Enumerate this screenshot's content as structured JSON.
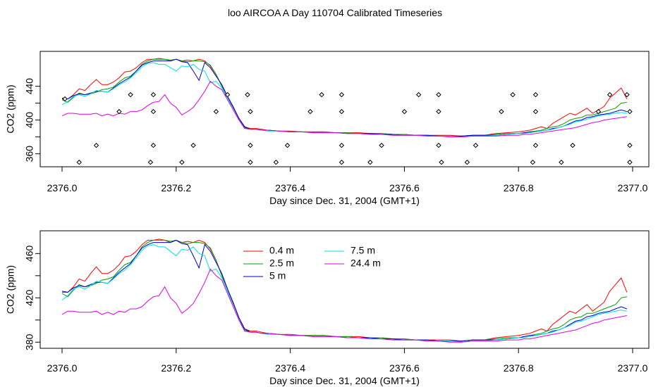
{
  "title": "loo AIRCOA A  Day 110704  Calibrated Timeseries",
  "chart_data": [
    {
      "type": "line",
      "xlabel": "Day since Dec. 31, 2004 (GMT+1)",
      "ylabel": "CO2 (ppm)",
      "xlim": [
        2376.0,
        2377.0
      ],
      "ylim": [
        348,
        478
      ],
      "xticks": [
        "2376.0",
        "2376.2",
        "2376.4",
        "2376.6",
        "2376.8",
        "2377.0"
      ],
      "yticks": [
        "360",
        "400",
        "440"
      ],
      "xtick_values": [
        2376.0,
        2376.2,
        2376.4,
        2376.6,
        2376.8,
        2377.0
      ],
      "ytick_values": [
        360,
        380,
        400,
        420,
        440
      ],
      "ytick_labeled": [
        360,
        400,
        440
      ],
      "x": [
        2376.0,
        2376.01,
        2376.02,
        2376.03,
        2376.04,
        2376.05,
        2376.06,
        2376.07,
        2376.08,
        2376.09,
        2376.1,
        2376.11,
        2376.12,
        2376.13,
        2376.14,
        2376.15,
        2376.16,
        2376.17,
        2376.18,
        2376.19,
        2376.2,
        2376.21,
        2376.22,
        2376.23,
        2376.24,
        2376.25,
        2376.26,
        2376.27,
        2376.28,
        2376.29,
        2376.3,
        2376.31,
        2376.32,
        2376.33,
        2376.34,
        2376.35,
        2376.36,
        2376.38,
        2376.4,
        2376.42,
        2376.44,
        2376.46,
        2376.48,
        2376.5,
        2376.52,
        2376.54,
        2376.56,
        2376.58,
        2376.6,
        2376.62,
        2376.64,
        2376.66,
        2376.68,
        2376.7,
        2376.72,
        2376.74,
        2376.76,
        2376.78,
        2376.8,
        2376.81,
        2376.82,
        2376.83,
        2376.84,
        2376.85,
        2376.86,
        2376.87,
        2376.88,
        2376.89,
        2376.9,
        2376.91,
        2376.92,
        2376.93,
        2376.94,
        2376.95,
        2376.96,
        2376.97,
        2376.98,
        2376.99
      ],
      "series": [
        {
          "name": "0.4 m",
          "color": "#ff0000",
          "values": [
            425,
            425,
            430,
            437,
            435,
            442,
            448,
            442,
            442,
            445,
            450,
            457,
            458,
            462,
            468,
            472,
            472,
            473,
            472,
            470,
            472,
            470,
            471,
            470,
            472,
            470,
            464,
            454,
            440,
            428,
            415,
            402,
            392,
            390,
            390,
            389,
            388,
            387,
            387,
            386,
            386,
            386,
            385,
            385,
            385,
            384,
            384,
            383,
            383,
            382,
            382,
            382,
            382,
            381,
            382,
            382,
            384,
            385,
            386,
            387,
            388,
            390,
            392,
            390,
            396,
            400,
            404,
            408,
            406,
            410,
            414,
            408,
            412,
            416,
            426,
            432,
            438,
            425
          ]
        },
        {
          "name": "2.5 m",
          "color": "#00a000",
          "values": [
            424,
            421,
            427,
            432,
            430,
            431,
            433,
            436,
            437,
            439,
            445,
            450,
            452,
            458,
            466,
            470,
            472,
            472,
            472,
            471,
            472,
            470,
            469,
            470,
            470,
            469,
            465,
            454,
            440,
            428,
            416,
            402,
            391,
            389,
            389,
            388,
            388,
            387,
            386,
            386,
            386,
            386,
            385,
            385,
            384,
            384,
            384,
            383,
            383,
            382,
            382,
            381,
            381,
            381,
            382,
            382,
            383,
            384,
            384,
            385,
            386,
            387,
            388,
            390,
            392,
            393,
            396,
            400,
            402,
            403,
            406,
            406,
            408,
            410,
            412,
            414,
            420,
            421
          ]
        },
        {
          "name": "5 m",
          "color": "#0000cc",
          "values": [
            426,
            425,
            429,
            431,
            430,
            432,
            434,
            434,
            433,
            438,
            443,
            447,
            451,
            458,
            465,
            468,
            470,
            470,
            470,
            470,
            472,
            469,
            468,
            458,
            447,
            468,
            462,
            452,
            442,
            428,
            415,
            402,
            392,
            389,
            389,
            388,
            388,
            387,
            386,
            386,
            385,
            385,
            385,
            384,
            384,
            384,
            383,
            383,
            382,
            382,
            382,
            381,
            381,
            381,
            382,
            382,
            382,
            383,
            384,
            385,
            386,
            386,
            387,
            388,
            390,
            391,
            393,
            396,
            399,
            400,
            403,
            404,
            406,
            407,
            408,
            410,
            412,
            410
          ]
        },
        {
          "name": "7.5 m",
          "color": "#00e0e0",
          "values": [
            418,
            422,
            428,
            430,
            428,
            431,
            435,
            434,
            433,
            437,
            442,
            445,
            450,
            456,
            463,
            467,
            468,
            466,
            466,
            462,
            458,
            464,
            463,
            466,
            460,
            458,
            444,
            446,
            438,
            426,
            412,
            400,
            390,
            389,
            389,
            388,
            387,
            387,
            386,
            386,
            385,
            385,
            385,
            384,
            384,
            383,
            383,
            382,
            382,
            382,
            381,
            381,
            381,
            380,
            381,
            381,
            382,
            383,
            384,
            384,
            385,
            386,
            387,
            388,
            389,
            391,
            393,
            395,
            398,
            399,
            401,
            403,
            405,
            406,
            407,
            408,
            409,
            408
          ]
        },
        {
          "name": "24.4 m",
          "color": "#e000e0",
          "values": [
            405,
            408,
            408,
            407,
            407,
            407,
            408,
            405,
            407,
            405,
            408,
            407,
            410,
            410,
            412,
            417,
            421,
            422,
            430,
            420,
            415,
            406,
            410,
            415,
            424,
            434,
            446,
            440,
            436,
            424,
            412,
            400,
            390,
            389,
            389,
            388,
            388,
            387,
            386,
            386,
            385,
            385,
            385,
            384,
            384,
            383,
            383,
            382,
            382,
            382,
            381,
            381,
            380,
            380,
            381,
            381,
            381,
            382,
            382,
            383,
            383,
            384,
            385,
            386,
            387,
            388,
            389,
            390,
            391,
            393,
            395,
            397,
            398,
            400,
            401,
            402,
            403,
            404
          ]
        }
      ],
      "markers": {
        "symbol": "diamond",
        "points": [
          [
            2376.005,
            425
          ],
          [
            2376.03,
            350
          ],
          [
            2376.06,
            370
          ],
          [
            2376.1,
            410
          ],
          [
            2376.12,
            430
          ],
          [
            2376.155,
            350
          ],
          [
            2376.16,
            410
          ],
          [
            2376.16,
            430
          ],
          [
            2376.16,
            370
          ],
          [
            2376.21,
            350
          ],
          [
            2376.23,
            370
          ],
          [
            2376.27,
            410
          ],
          [
            2376.29,
            430
          ],
          [
            2376.325,
            430
          ],
          [
            2376.33,
            410
          ],
          [
            2376.33,
            370
          ],
          [
            2376.33,
            350
          ],
          [
            2376.375,
            350
          ],
          [
            2376.395,
            370
          ],
          [
            2376.435,
            410
          ],
          [
            2376.455,
            430
          ],
          [
            2376.49,
            410
          ],
          [
            2376.49,
            430
          ],
          [
            2376.49,
            370
          ],
          [
            2376.49,
            350
          ],
          [
            2376.54,
            350
          ],
          [
            2376.56,
            370
          ],
          [
            2376.6,
            410
          ],
          [
            2376.625,
            430
          ],
          [
            2376.66,
            430
          ],
          [
            2376.66,
            410
          ],
          [
            2376.66,
            370
          ],
          [
            2376.665,
            350
          ],
          [
            2376.71,
            350
          ],
          [
            2376.725,
            370
          ],
          [
            2376.77,
            410
          ],
          [
            2376.79,
            430
          ],
          [
            2376.83,
            430
          ],
          [
            2376.83,
            410
          ],
          [
            2376.83,
            370
          ],
          [
            2376.825,
            350
          ],
          [
            2376.875,
            350
          ],
          [
            2376.895,
            370
          ],
          [
            2376.94,
            410
          ],
          [
            2376.96,
            430
          ],
          [
            2376.99,
            430
          ],
          [
            2376.995,
            410
          ],
          [
            2376.995,
            370
          ],
          [
            2376.995,
            350
          ]
        ]
      }
    },
    {
      "type": "line",
      "xlabel": "Day since Dec. 31, 2004 (GMT+1)",
      "ylabel": "CO2 (ppm)",
      "xlim": [
        2376.0,
        2377.0
      ],
      "ylim": [
        377,
        478
      ],
      "xticks": [
        "2376.0",
        "2376.2",
        "2376.4",
        "2376.6",
        "2376.8",
        "2377.0"
      ],
      "yticks": [
        "380",
        "420",
        "460"
      ],
      "xtick_values": [
        2376.0,
        2376.2,
        2376.4,
        2376.6,
        2376.8,
        2377.0
      ],
      "ytick_values": [
        380,
        400,
        420,
        440,
        460
      ],
      "ytick_labeled": [
        380,
        420,
        460
      ],
      "legend": {
        "position": "top-left",
        "columns": 2
      },
      "series_ref": "same as panel 1"
    }
  ]
}
